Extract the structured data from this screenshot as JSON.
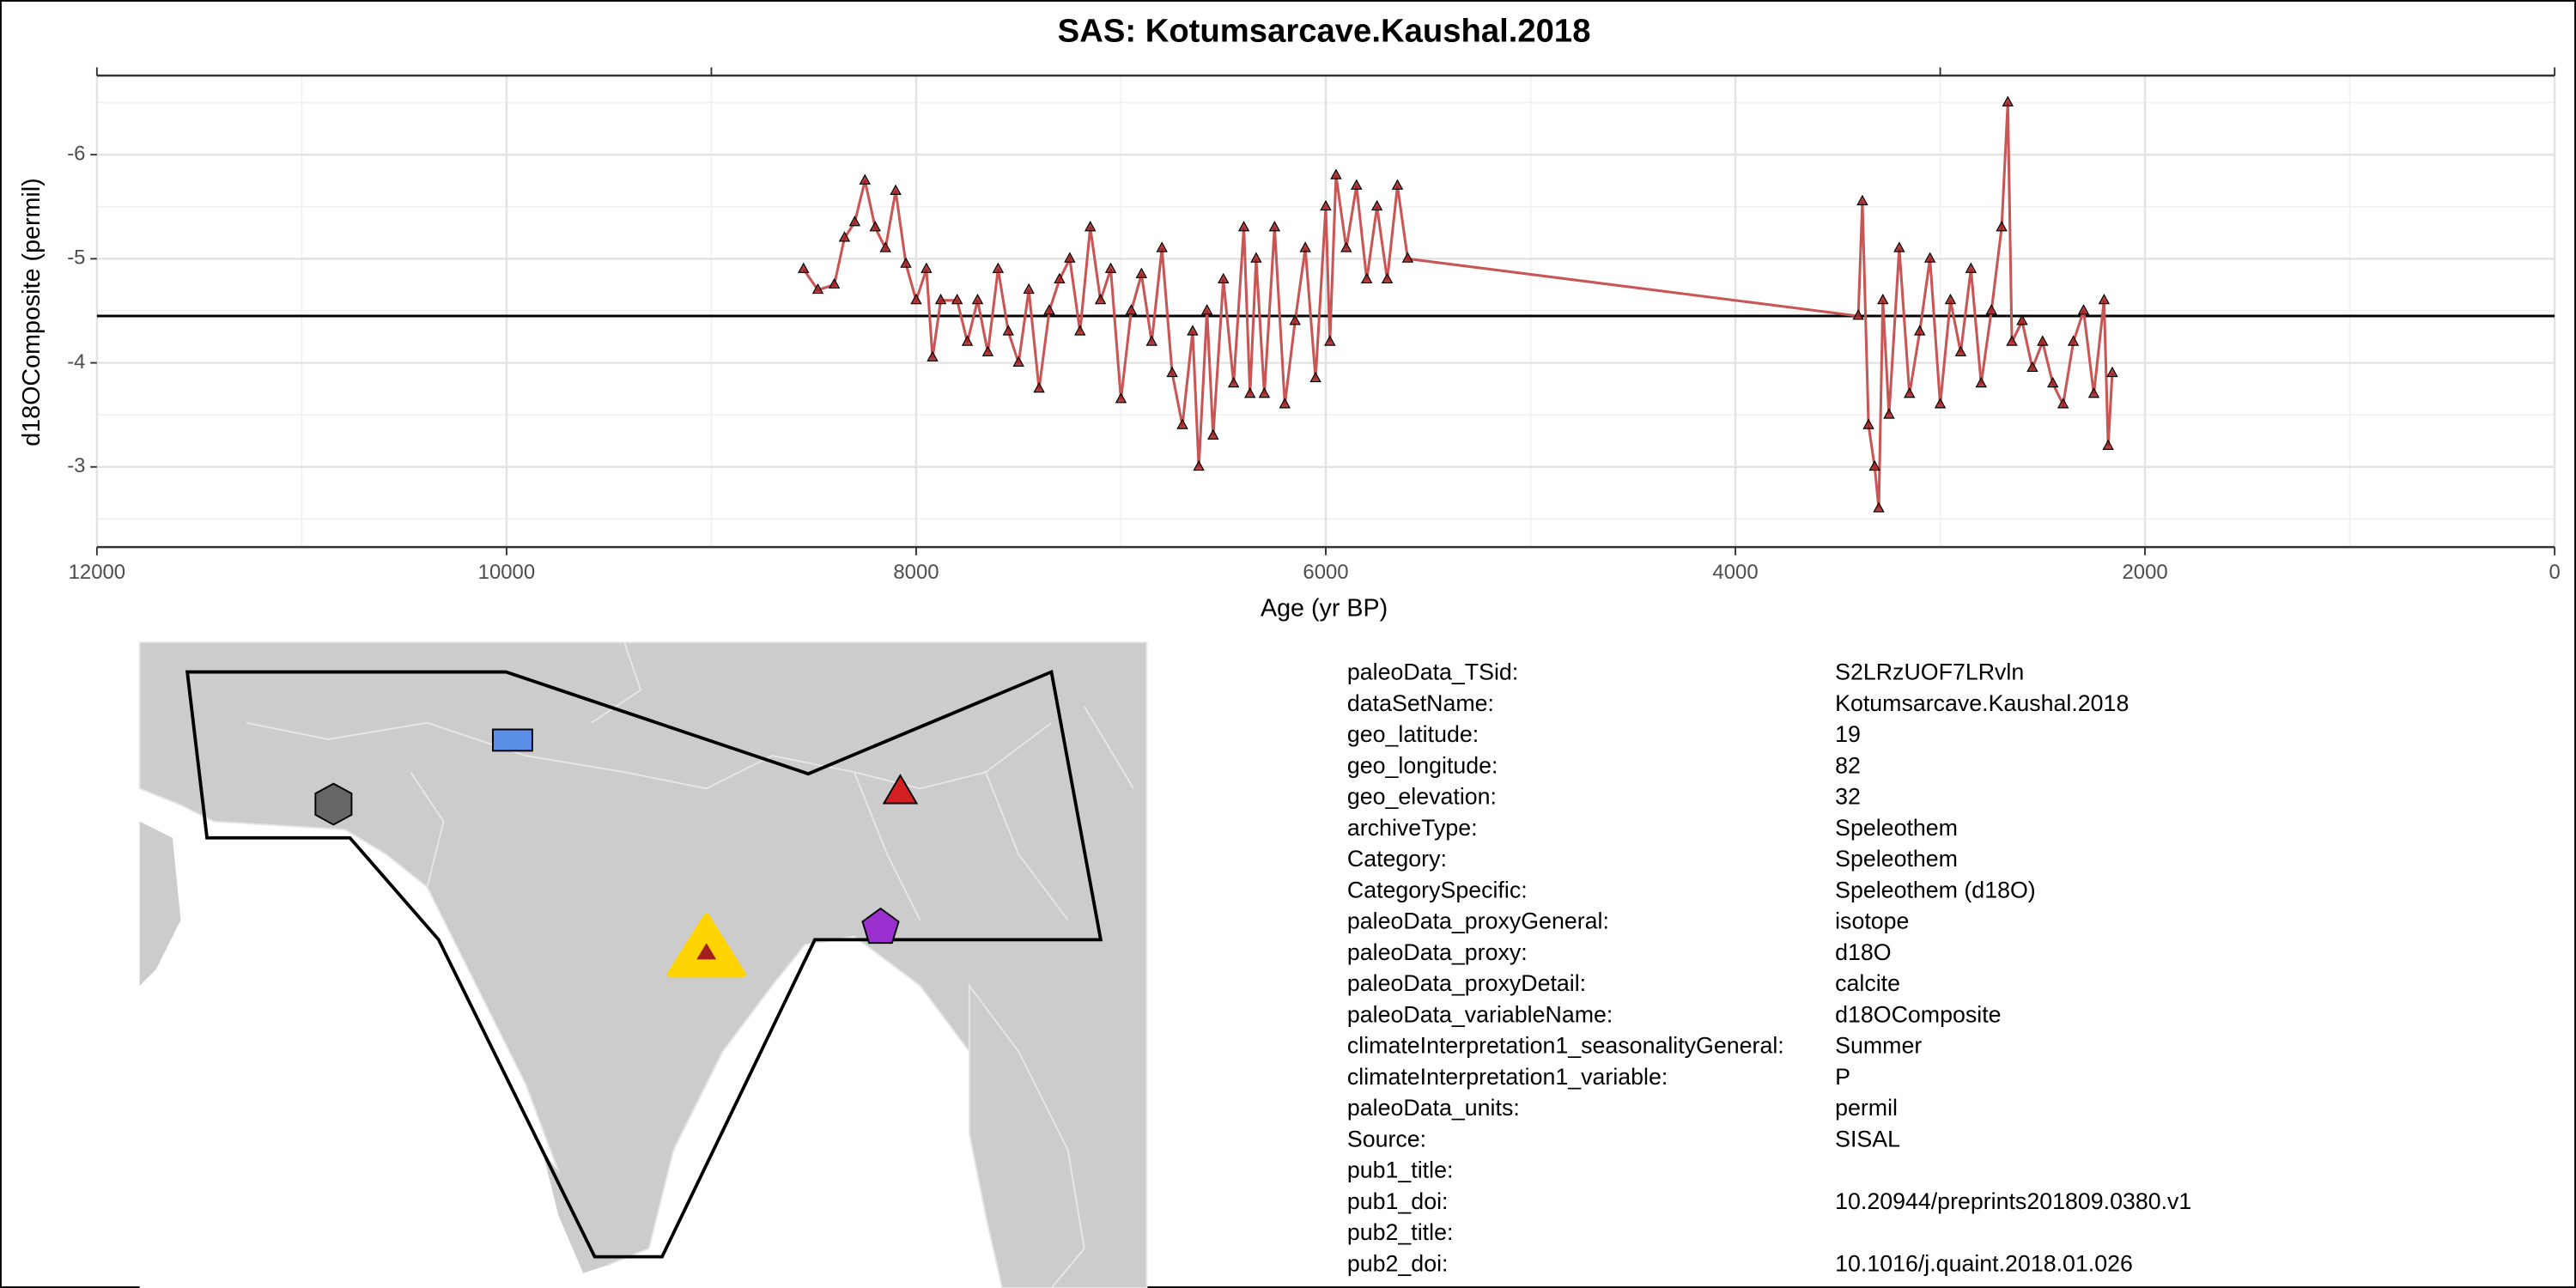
{
  "chart_data": {
    "type": "line",
    "title": "SAS: Kotumsarcave.Kaushal.2018",
    "xlabel": "Age (yr BP)",
    "ylabel": "d18OComposite (permil)",
    "xlim": [
      12000,
      0
    ],
    "xticks": [
      12000,
      10000,
      8000,
      6000,
      4000,
      2000,
      0
    ],
    "top_xticks": [
      12000,
      9000,
      3000,
      0
    ],
    "ylim": [
      -6.76,
      -2.23
    ],
    "y_reversed": true,
    "yticks": [
      -6,
      -5,
      -4,
      -3
    ],
    "grid": true,
    "hline": -4.45,
    "series": [
      {
        "color": "#c95555",
        "marker_color": "#a31f1f",
        "x": [
          8550,
          8480,
          8400,
          8350,
          8300,
          8250,
          8200,
          8150,
          8100,
          8050,
          8000,
          7950,
          7920,
          7880,
          7800,
          7750,
          7700,
          7650,
          7600,
          7550,
          7500,
          7450,
          7400,
          7350,
          7300,
          7250,
          7200,
          7150,
          7100,
          7050,
          7000,
          6950,
          6900,
          6850,
          6800,
          6750,
          6700,
          6650,
          6620,
          6580,
          6550,
          6500,
          6450,
          6400,
          6370,
          6340,
          6300,
          6250,
          6200,
          6150,
          6100,
          6050,
          6000,
          5980,
          5950,
          5900,
          5850,
          5800,
          5750,
          5700,
          5650,
          5600,
          3400,
          3380,
          3350,
          3320,
          3300,
          3280,
          3250,
          3200,
          3150,
          3100,
          3050,
          3000,
          2950,
          2900,
          2850,
          2800,
          2750,
          2700,
          2670,
          2650,
          2600,
          2550,
          2500,
          2450,
          2400,
          2350,
          2300,
          2250,
          2200,
          2180,
          2160
        ],
        "values": [
          -4.9,
          -4.7,
          -4.75,
          -5.2,
          -5.35,
          -5.75,
          -5.3,
          -5.1,
          -5.65,
          -4.95,
          -4.6,
          -4.9,
          -4.05,
          -4.6,
          -4.6,
          -4.2,
          -4.6,
          -4.1,
          -4.9,
          -4.3,
          -4.0,
          -4.7,
          -3.75,
          -4.5,
          -4.8,
          -5.0,
          -4.3,
          -5.3,
          -4.6,
          -4.9,
          -3.65,
          -4.5,
          -4.85,
          -4.2,
          -5.1,
          -3.9,
          -3.4,
          -4.3,
          -3.0,
          -4.5,
          -3.3,
          -4.8,
          -3.8,
          -5.3,
          -3.7,
          -5.0,
          -3.7,
          -5.3,
          -3.6,
          -4.4,
          -5.1,
          -3.85,
          -5.5,
          -4.2,
          -5.8,
          -5.1,
          -5.7,
          -4.8,
          -5.5,
          -4.8,
          -5.7,
          -5.0,
          -4.45,
          -5.55,
          -3.4,
          -3.0,
          -2.6,
          -4.6,
          -3.5,
          -5.1,
          -3.7,
          -4.3,
          -5.0,
          -3.6,
          -4.6,
          -4.1,
          -4.9,
          -3.8,
          -4.5,
          -5.3,
          -6.5,
          -4.2,
          -4.4,
          -3.95,
          -4.2,
          -3.8,
          -3.6,
          -4.2,
          -4.5,
          -3.7,
          -4.6,
          -3.2,
          -3.9
        ]
      }
    ]
  },
  "metadata": {
    "rows": [
      [
        "paleoData_TSid:",
        "S2LRzUOF7LRvln"
      ],
      [
        "dataSetName:",
        "Kotumsarcave.Kaushal.2018"
      ],
      [
        "geo_latitude:",
        "19"
      ],
      [
        "geo_longitude:",
        "82"
      ],
      [
        "geo_elevation:",
        "32"
      ],
      [
        "archiveType:",
        "Speleothem"
      ],
      [
        "Category:",
        "Speleothem"
      ],
      [
        "CategorySpecific:",
        "Speleothem (d18O)"
      ],
      [
        "paleoData_proxyGeneral:",
        "isotope"
      ],
      [
        "paleoData_proxy:",
        "d18O"
      ],
      [
        "paleoData_proxyDetail:",
        "calcite"
      ],
      [
        "paleoData_variableName:",
        "d18OComposite"
      ],
      [
        "climateInterpretation1_seasonalityGeneral:",
        "Summer"
      ],
      [
        "climateInterpretation1_variable:",
        "P"
      ],
      [
        "paleoData_units:",
        "permil"
      ],
      [
        "Source:",
        "SISAL"
      ],
      [
        "pub1_title:"
      ],
      [
        "pub1_doi:",
        "10.20944/preprints201809.0380.v1"
      ],
      [
        "pub2_title:"
      ],
      [
        "pub2_doi:",
        "10.1016/j.quaint.2018.01.026"
      ]
    ]
  }
}
